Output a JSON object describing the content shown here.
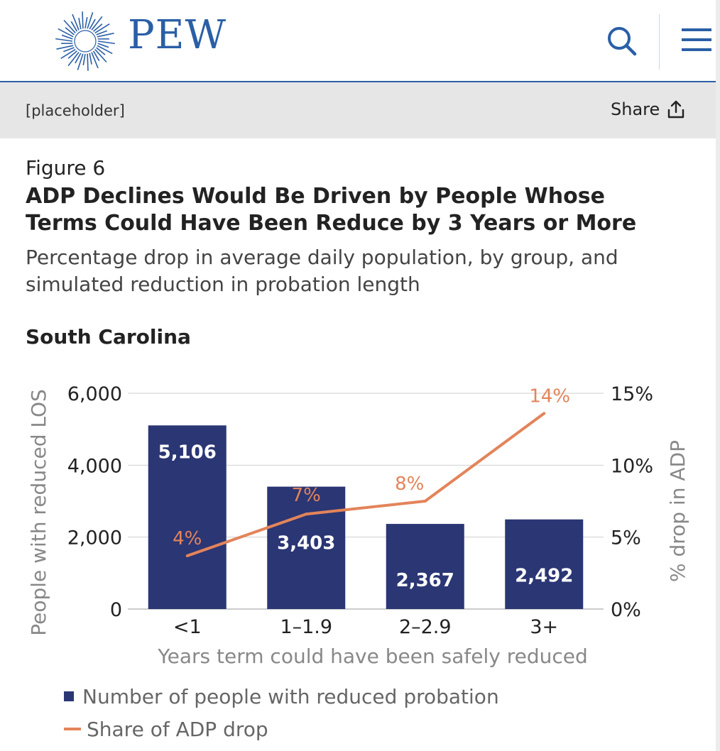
{
  "header": {
    "brand": "PEW",
    "icons": {
      "logo": "pew-sunburst-logo",
      "search": "search-icon",
      "menu": "hamburger-menu-icon"
    },
    "brand_color": "#2a5fa6"
  },
  "subbar": {
    "breadcrumb": "[placeholder]",
    "share_label": "Share",
    "share_icon": "share-upload-icon"
  },
  "figure": {
    "label": "Figure 6",
    "title": "ADP Declines Would Be Driven by People Whose Terms Could Have Been Reduce by 3 Years or More",
    "subtitle": "Percentage drop in average daily population, by group, and simulated reduction in probation length",
    "region": "South Carolina"
  },
  "chart_data": {
    "type": "bar",
    "categories": [
      "<1",
      "1–1.9",
      "2–2.9",
      "3+"
    ],
    "xlabel": "Years term could have been safely reduced",
    "ylabel": "People with reduced LOS",
    "ylabel_right": "% drop in ADP",
    "ylim": [
      0,
      6000
    ],
    "ylim_right": [
      0,
      15
    ],
    "yticks": [
      "0",
      "2,000",
      "4,000",
      "6,000"
    ],
    "yticks_right": [
      "0%",
      "5%",
      "10%",
      "15%"
    ],
    "grid": true,
    "legend_placement": "bottom-left",
    "series": [
      {
        "name": "Number of people with reduced probation",
        "type": "bar",
        "values": [
          5106,
          3403,
          2367,
          2492
        ],
        "labels": [
          "5,106",
          "3,403",
          "2,367",
          "2,492"
        ],
        "color": "#2b3674"
      },
      {
        "name": "Share of ADP drop",
        "type": "line",
        "axis": "right",
        "values": [
          3.7,
          6.6,
          7.5,
          13.6
        ],
        "labels": [
          "4%",
          "7%",
          "8%",
          "14%"
        ],
        "color": "#e3845a"
      }
    ]
  }
}
